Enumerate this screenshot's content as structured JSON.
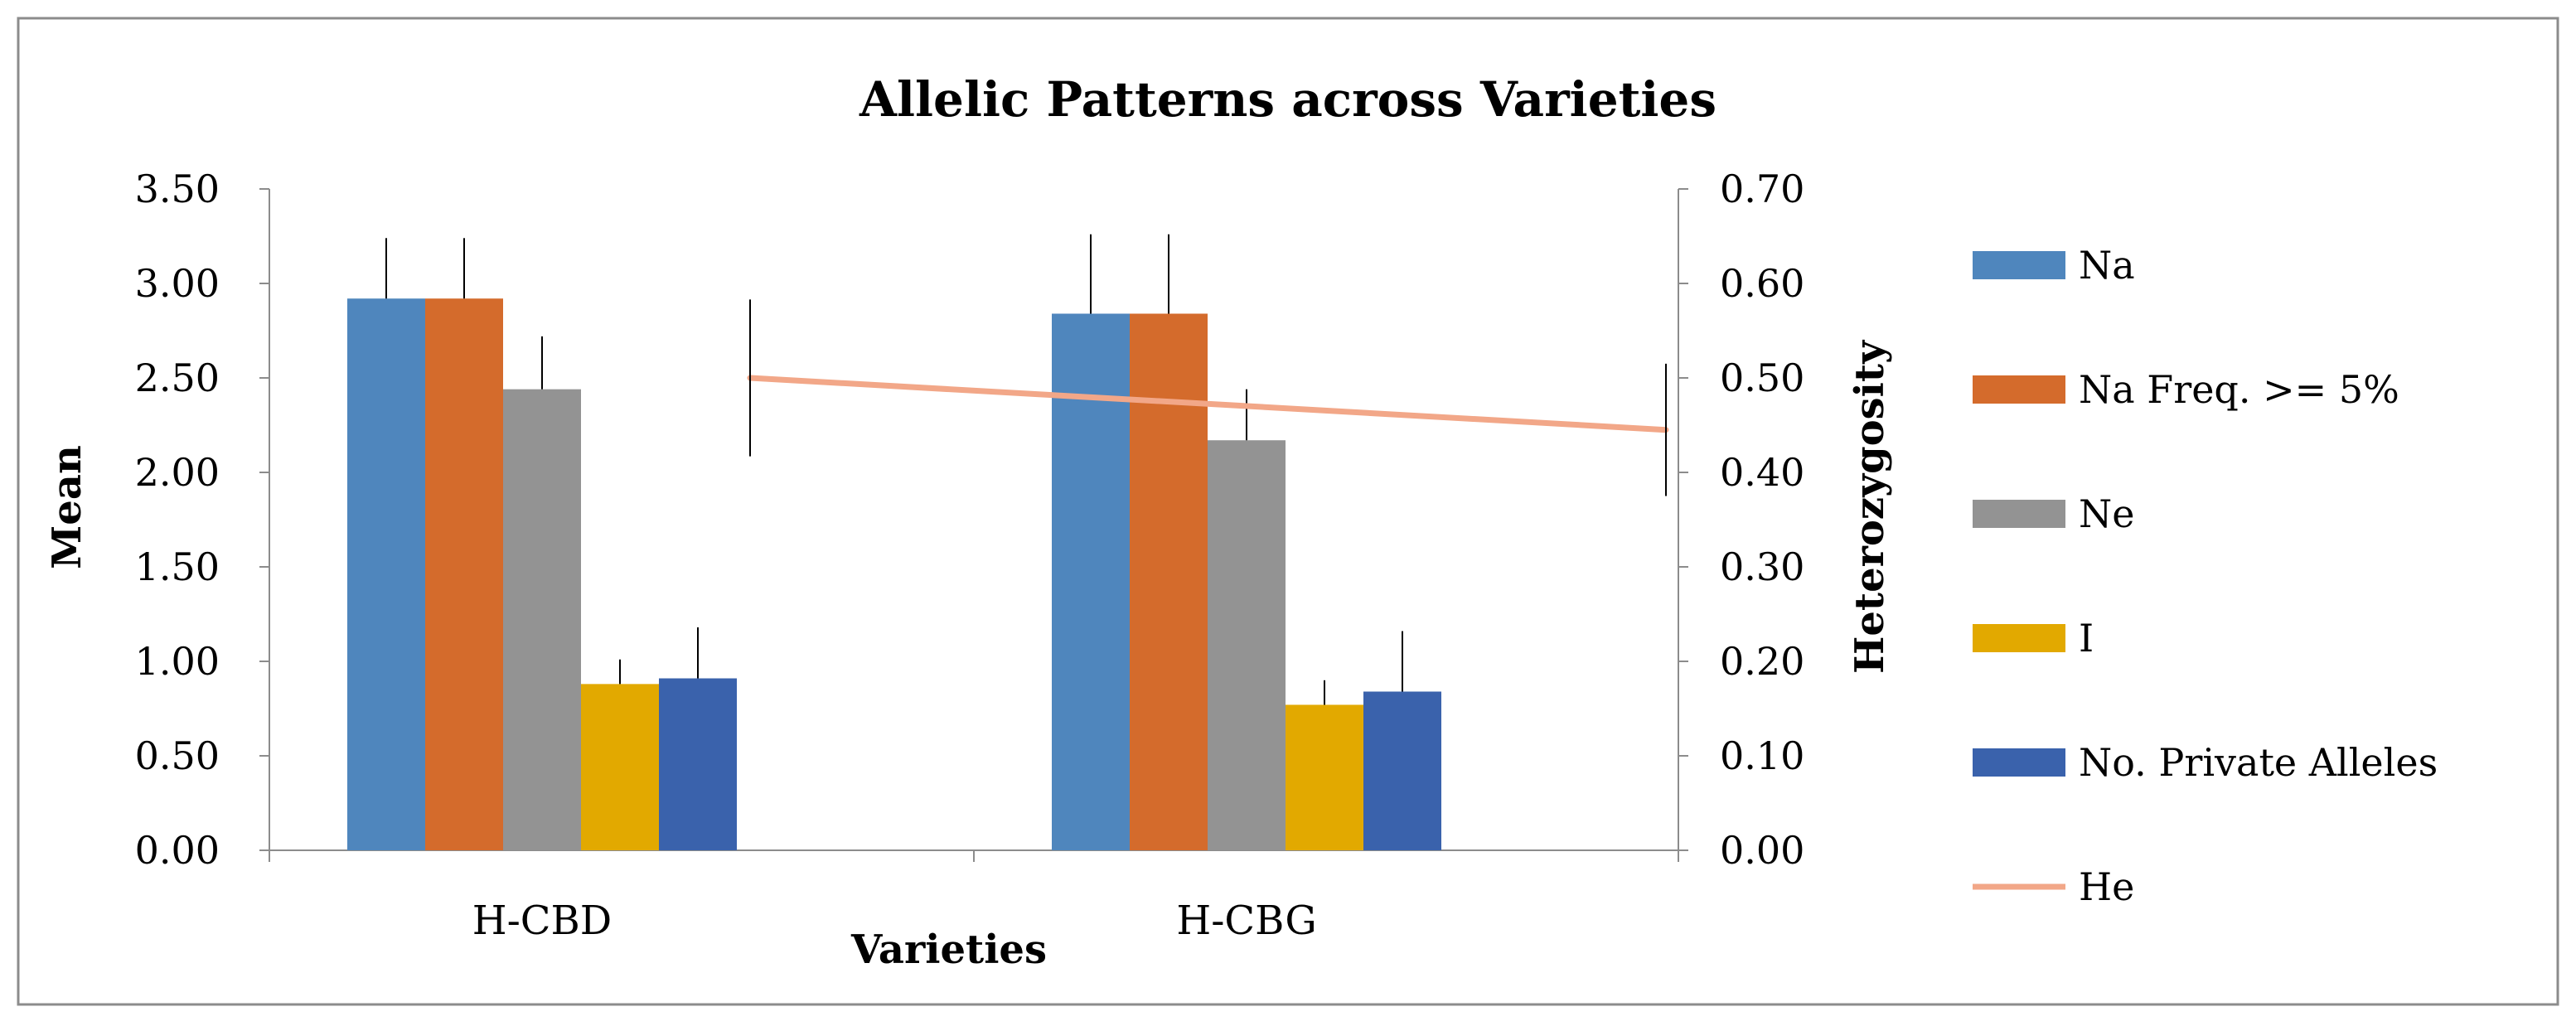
{
  "chart_data": {
    "type": "bar",
    "title": "Allelic  Patterns across Varieties",
    "xlabel": "Varieties",
    "ylabel": "Mean",
    "y2label": "Heterozygosity",
    "ylim": [
      0,
      3.5
    ],
    "y2lim": [
      0,
      0.7
    ],
    "y_ticks": [
      "0.00",
      "0.50",
      "1.00",
      "1.50",
      "2.00",
      "2.50",
      "3.00",
      "3.50"
    ],
    "y2_ticks": [
      "0.00",
      "0.10",
      "0.20",
      "0.30",
      "0.40",
      "0.50",
      "0.60",
      "0.70"
    ],
    "categories": [
      "H-CBD",
      "H-CBG"
    ],
    "series": [
      {
        "name": "Na",
        "color": "#4f86bd",
        "values": [
          2.92,
          2.84
        ],
        "errors": [
          0.32,
          0.42
        ]
      },
      {
        "name": "Na Freq. >= 5%",
        "color": "#d46b2c",
        "values": [
          2.92,
          2.84
        ],
        "errors": [
          0.32,
          0.42
        ]
      },
      {
        "name": "Ne",
        "color": "#939393",
        "values": [
          2.44,
          2.17
        ],
        "errors": [
          0.28,
          0.27
        ]
      },
      {
        "name": "I",
        "color": "#e2a900",
        "values": [
          0.88,
          0.77
        ],
        "errors": [
          0.13,
          0.13
        ]
      },
      {
        "name": "No. Private Alleles",
        "color": "#3a62ac",
        "values": [
          0.91,
          0.84
        ],
        "errors": [
          0.27,
          0.32
        ]
      }
    ],
    "line_series": {
      "name": "He",
      "color": "#f2a788",
      "axis": "secondary",
      "values": [
        0.5,
        0.445
      ],
      "errors": [
        0.083,
        0.07
      ]
    },
    "legend_position": "right"
  }
}
